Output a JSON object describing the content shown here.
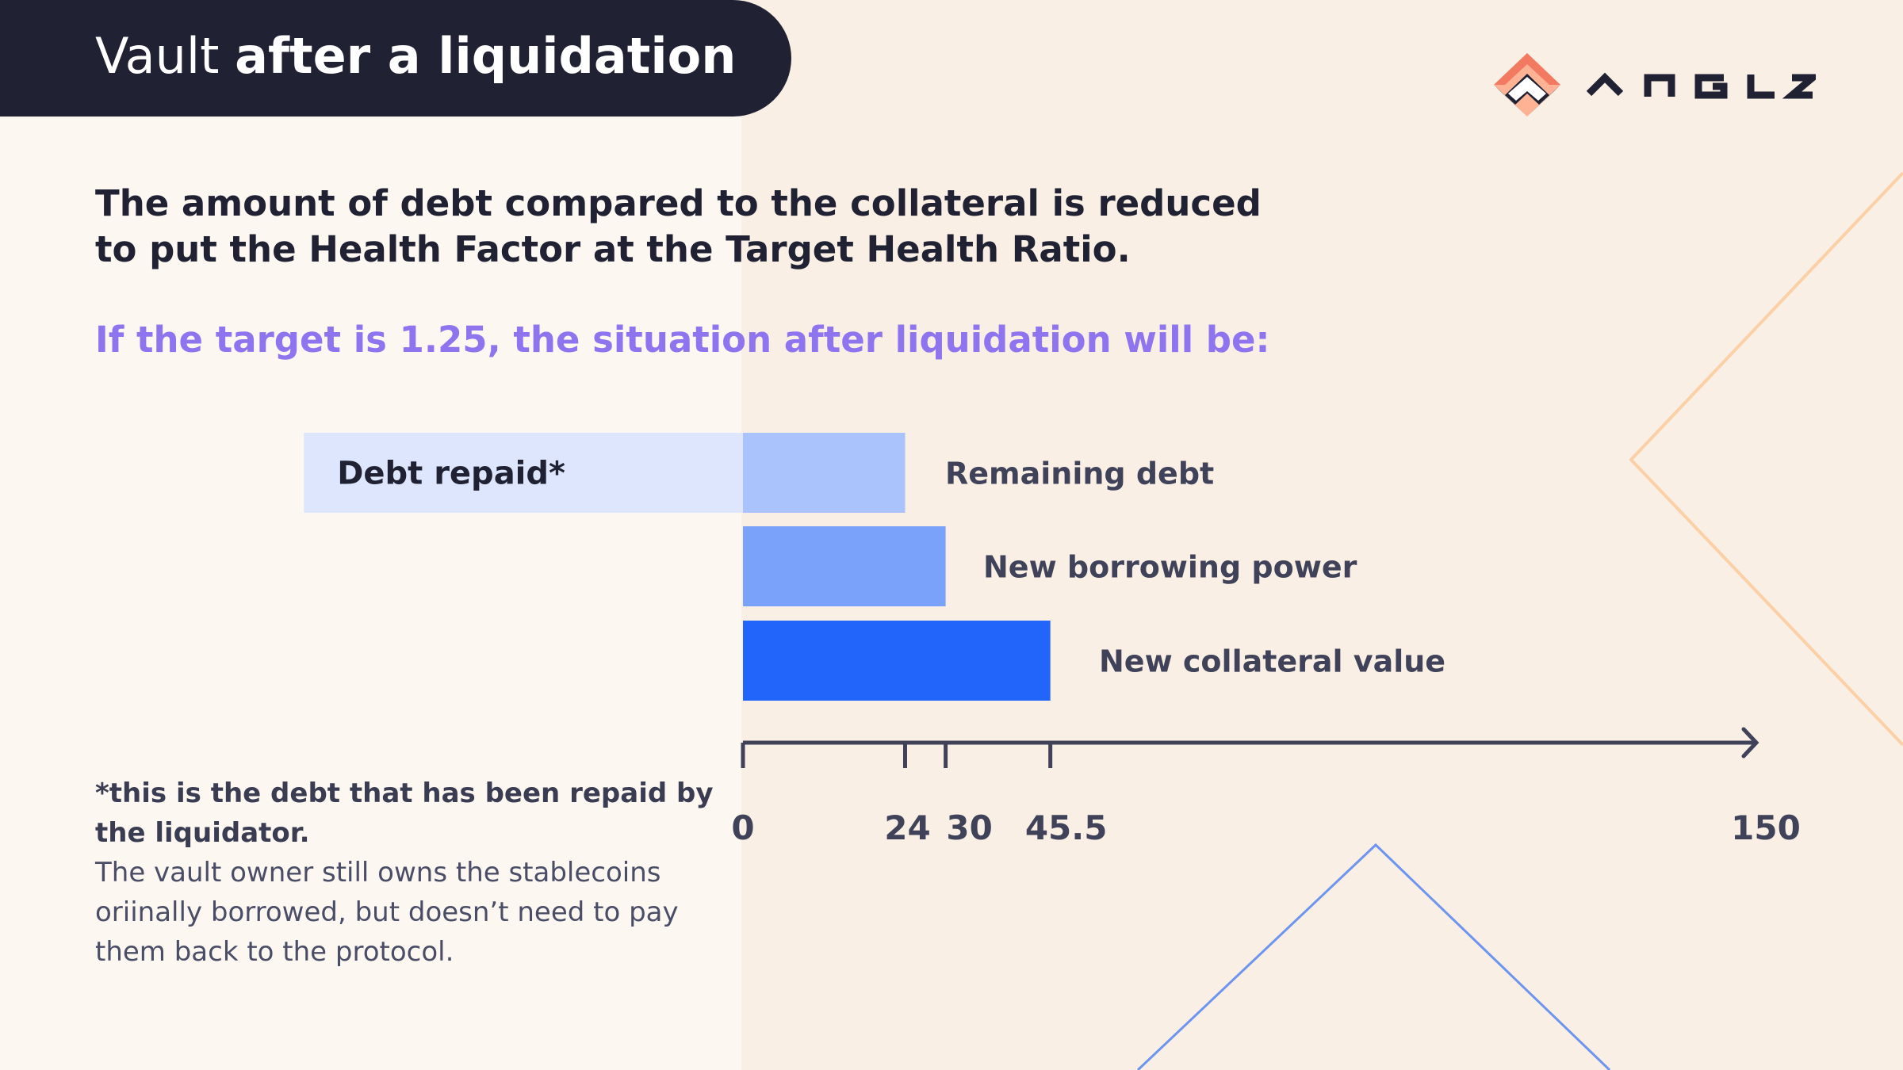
{
  "header": {
    "title_regular": "Vault ",
    "title_bold": "after a liquidation"
  },
  "logo": {
    "wordmark": "ANGLE",
    "icon": "angle-logo-icon"
  },
  "intro_text": "The amount of debt compared to the collateral is reduced to put the Health Factor at the Target Health Ratio.",
  "subtitle": "If the target is 1.25, the situation after liquidation will be:",
  "footnote": {
    "bold": "*this is the debt that has been repaid by the liquidator.",
    "regular": "The vault owner still owns the stablecoins oriinally borrowed, but doesn’t need to pay them back to the protocol."
  },
  "colors": {
    "dark": "#202234",
    "purple": "#8e74ee",
    "debt_repaid": "#dde6fd",
    "remaining_debt": "#aac3fd",
    "new_borrowing_power": "#7ba2fb",
    "new_collateral_value": "#2265fb",
    "axis": "#3f4258",
    "deco_orange": "#fbd0a6",
    "deco_blue": "#6d95f0"
  },
  "chart_data": {
    "type": "bar",
    "orientation": "horizontal",
    "xlim": [
      0,
      150
    ],
    "ticks": [
      {
        "value": 0,
        "label": "0"
      },
      {
        "value": 24,
        "label": "24"
      },
      {
        "value": 30,
        "label": "30"
      },
      {
        "value": 45.5,
        "label": "45.5"
      },
      {
        "value": 150,
        "label": "150"
      }
    ],
    "bars": [
      {
        "label": "Remaining debt",
        "start": 0,
        "end": 24,
        "color": "#aac3fd",
        "label_side": "right"
      },
      {
        "label": "New borrowing power",
        "start": 0,
        "end": 30,
        "color": "#7ba2fb",
        "label_side": "right"
      },
      {
        "label": "New collateral value",
        "start": 0,
        "end": 45.5,
        "color": "#2265fb",
        "label_side": "right"
      }
    ],
    "negative_bar": {
      "label": "Debt repaid*",
      "start": -65,
      "end": 0,
      "color": "#dde6fd"
    }
  }
}
